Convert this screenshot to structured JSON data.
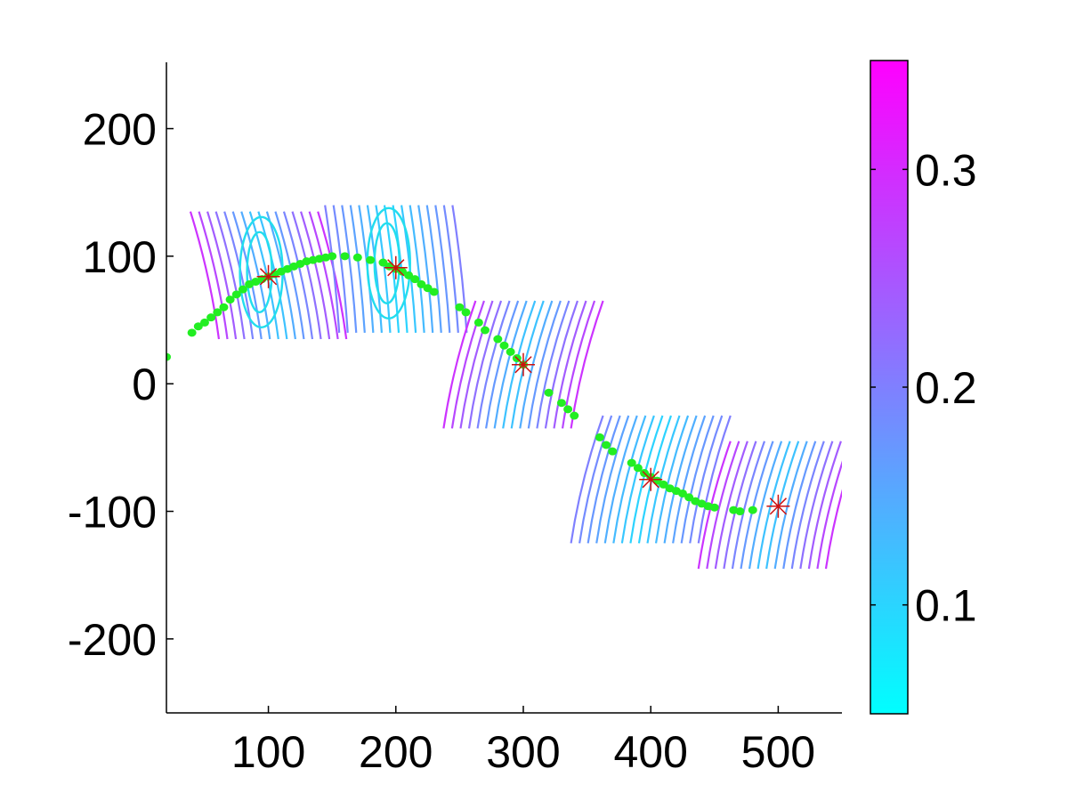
{
  "chart_data": [
    {
      "type": "contour-scatter",
      "title": "",
      "xlabel": "",
      "ylabel": "",
      "xlim": [
        20,
        550
      ],
      "ylim": [
        -258,
        252
      ],
      "xticks": [
        "100",
        "200",
        "300",
        "400",
        "500"
      ],
      "yticks": [
        "-200",
        "-100",
        "0",
        "100",
        "200"
      ],
      "grid": false,
      "colors": {
        "points": "#22ee22",
        "markers": "#cc1111",
        "colormap_low": "#00ffff",
        "colormap_high": "#ff00ff"
      },
      "curve_points": {
        "x": [
          20,
          40,
          45,
          50,
          55,
          60,
          65,
          70,
          75,
          80,
          85,
          90,
          95,
          100,
          105,
          110,
          115,
          120,
          125,
          130,
          135,
          140,
          145,
          150,
          160,
          170,
          180,
          190,
          195,
          200,
          205,
          210,
          215,
          220,
          225,
          230,
          250,
          255,
          265,
          270,
          280,
          285,
          290,
          295,
          300,
          320,
          330,
          335,
          340,
          360,
          365,
          370,
          385,
          390,
          395,
          400,
          405,
          410,
          415,
          420,
          425,
          430,
          435,
          440,
          445,
          450,
          465,
          470,
          480
        ],
        "y": [
          21,
          40,
          45,
          48,
          52,
          56,
          60,
          66,
          70,
          74,
          78,
          80,
          82,
          84,
          86,
          88,
          90,
          92,
          94,
          96,
          97,
          98,
          99,
          100,
          100,
          99,
          97,
          95,
          92,
          90,
          88,
          85,
          82,
          78,
          75,
          72,
          60,
          56,
          48,
          42,
          35,
          30,
          25,
          20,
          15,
          -7,
          -15,
          -20,
          -25,
          -42,
          -48,
          -53,
          -62,
          -66,
          -70,
          -73,
          -76,
          -79,
          -82,
          -84,
          -86,
          -89,
          -92,
          -94,
          -96,
          -97,
          -99,
          -100,
          -99
        ]
      },
      "markers": {
        "x": [
          100,
          200,
          300,
          400,
          500
        ],
        "y": [
          84,
          91,
          15,
          -75,
          -96
        ]
      },
      "contour_regions": [
        {
          "x_range": [
            50,
            150
          ],
          "y_range": [
            35,
            135
          ],
          "center": [
            100,
            84
          ]
        },
        {
          "x_range": [
            150,
            250
          ],
          "y_range": [
            40,
            140
          ],
          "center": [
            200,
            91
          ]
        },
        {
          "x_range": [
            250,
            350
          ],
          "y_range": [
            -35,
            65
          ],
          "center": [
            300,
            15
          ]
        },
        {
          "x_range": [
            350,
            450
          ],
          "y_range": [
            -125,
            -25
          ],
          "center": [
            400,
            -75
          ]
        },
        {
          "x_range": [
            450,
            550
          ],
          "y_range": [
            -145,
            -45
          ],
          "center": [
            500,
            -96
          ]
        }
      ],
      "colorbar": {
        "range": [
          0.05,
          0.35
        ],
        "ticks": [
          "0.1",
          "0.2",
          "0.3"
        ],
        "colormap": "cool"
      }
    }
  ]
}
